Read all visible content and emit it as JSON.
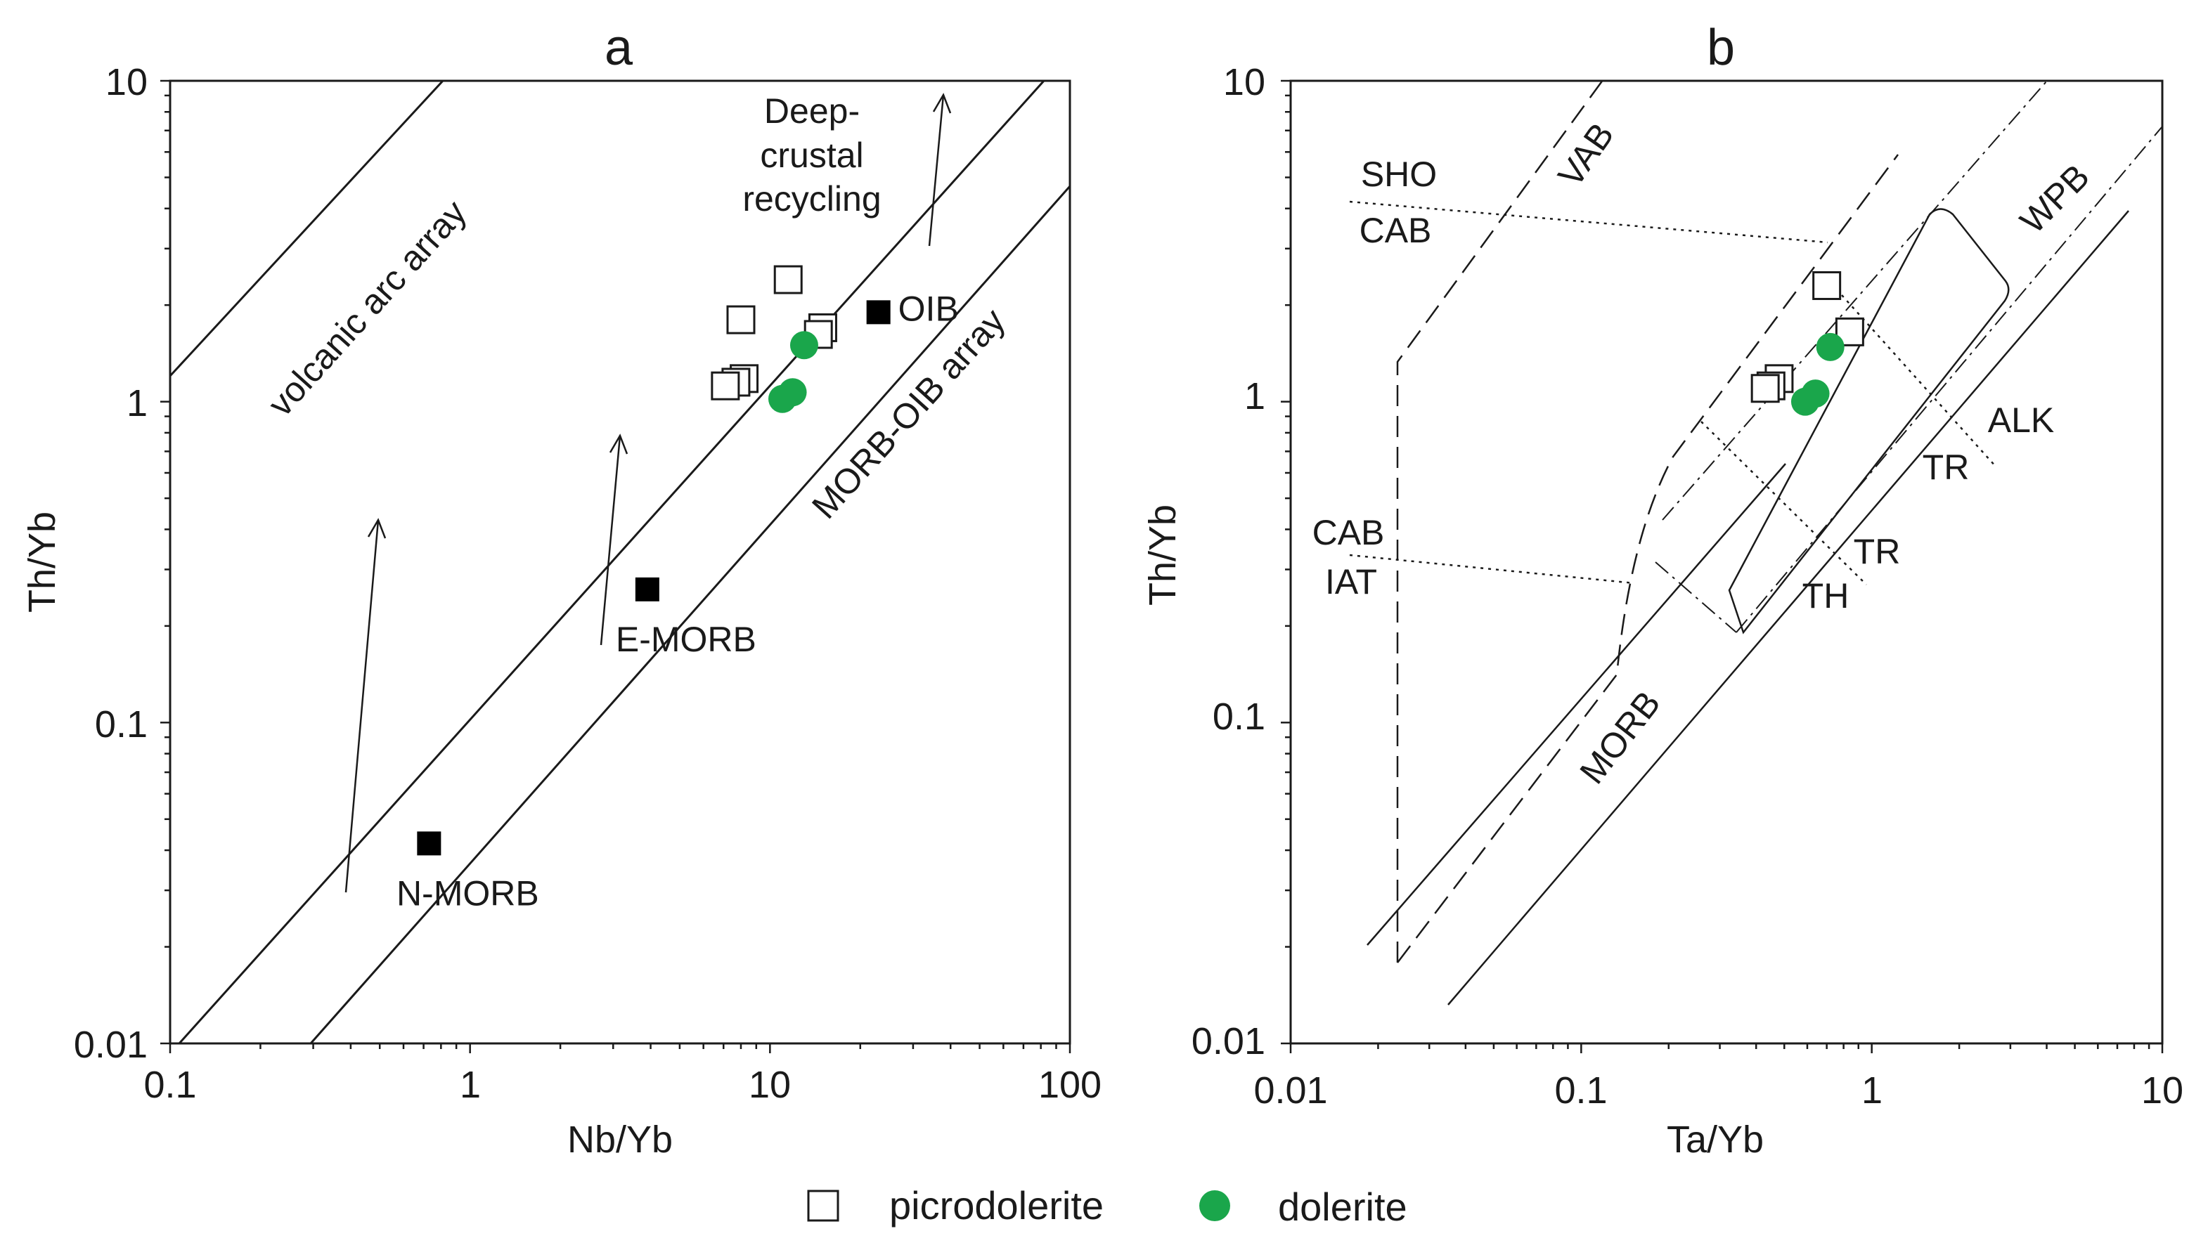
{
  "legend": {
    "picrodolerite": "picrodolerite",
    "dolerite": "dolerite"
  },
  "colors": {
    "dolerite_fill": "#1aa64b",
    "picrodolerite_fill": "#ffffff",
    "reference_fill": "#000000",
    "axis": "#1a1a1a"
  },
  "chart_data": [
    {
      "type": "scatter",
      "panel": "a",
      "title": "a",
      "xlabel": "Nb/Yb",
      "ylabel": "Th/Yb",
      "xscale": "log",
      "yscale": "log",
      "xlim": [
        0.1,
        100
      ],
      "ylim": [
        0.01,
        10
      ],
      "xticks": [
        "0.1",
        "1",
        "10",
        "100"
      ],
      "yticks": [
        "0.01",
        "0.1",
        "1",
        "10"
      ],
      "series": [
        {
          "name": "picrodolerite",
          "marker": "open-square",
          "points": [
            [
              11.5,
              2.4
            ],
            [
              8.0,
              1.8
            ],
            [
              15.0,
              1.7
            ],
            [
              14.5,
              1.62
            ],
            [
              8.2,
              1.18
            ],
            [
              7.7,
              1.15
            ],
            [
              7.1,
              1.12
            ]
          ]
        },
        {
          "name": "dolerite",
          "marker": "green-circle",
          "points": [
            [
              13.0,
              1.5
            ],
            [
              11.9,
              1.07
            ],
            [
              11.0,
              1.02
            ]
          ]
        },
        {
          "name": "reference",
          "marker": "filled-square",
          "points": [
            {
              "x": 23.0,
              "y": 1.9,
              "label": "OIB"
            },
            {
              "x": 3.9,
              "y": 0.26,
              "label": "E-MORB"
            },
            {
              "x": 0.73,
              "y": 0.042,
              "label": "N-MORB"
            }
          ]
        }
      ],
      "annotations": [
        "volcanic arc array",
        "MORB-OIB array",
        "Deep-",
        "crustal",
        "recycling"
      ]
    },
    {
      "type": "scatter",
      "panel": "b",
      "title": "b",
      "xlabel": "Ta/Yb",
      "ylabel": "Th/Yb",
      "xscale": "log",
      "yscale": "log",
      "xlim": [
        0.01,
        10
      ],
      "ylim": [
        0.01,
        10
      ],
      "xticks": [
        "0.01",
        "0.1",
        "1",
        "10"
      ],
      "yticks": [
        "0.01",
        "0.1",
        "1",
        "10"
      ],
      "series": [
        {
          "name": "picrodolerite",
          "marker": "open-square",
          "points": [
            [
              0.7,
              2.3
            ],
            [
              0.84,
              1.65
            ],
            [
              0.48,
              1.18
            ],
            [
              0.45,
              1.12
            ],
            [
              0.43,
              1.1
            ]
          ]
        },
        {
          "name": "dolerite",
          "marker": "green-circle",
          "points": [
            [
              0.72,
              1.48
            ],
            [
              0.64,
              1.06
            ],
            [
              0.59,
              1.0
            ]
          ]
        }
      ],
      "annotations": [
        "SHO",
        "CAB",
        "VAB",
        "WPB",
        "ALK",
        "TR",
        "CAB",
        "IAT",
        "TR",
        "TH",
        "MORB"
      ]
    }
  ]
}
